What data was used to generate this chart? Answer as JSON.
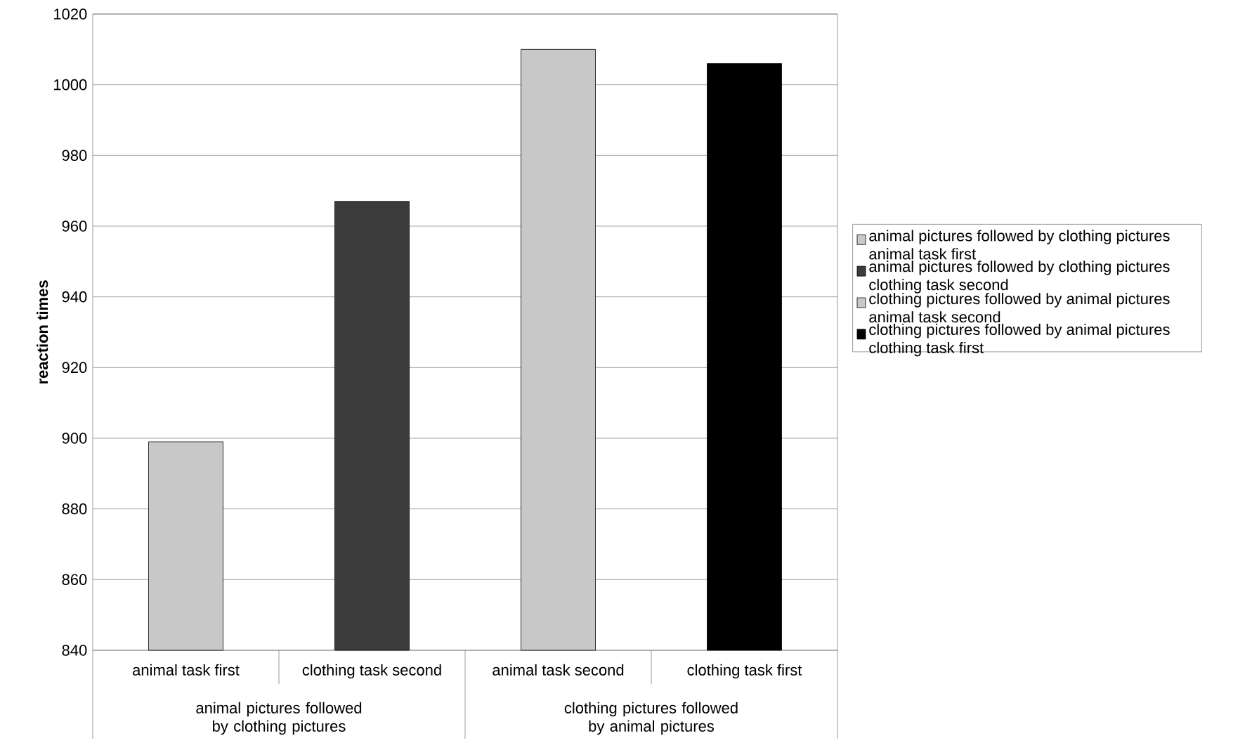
{
  "chart_data": {
    "type": "bar",
    "ylabel": "reaction times",
    "categories": [
      "animal task first",
      "clothing task second",
      "animal task second",
      "clothing task first"
    ],
    "series": [
      {
        "name": "animal pictures followed by clothing pictures animal task first",
        "color": "#c8c8c8",
        "values": [
          899,
          null,
          null,
          null
        ]
      },
      {
        "name": "animal pictures followed by clothing pictures clothing task second",
        "color": "#3c3c3c",
        "values": [
          null,
          967,
          null,
          null
        ]
      },
      {
        "name": "clothing pictures followed by animal pictures animal task second",
        "color": "#c8c8c8",
        "values": [
          null,
          null,
          1010,
          null
        ]
      },
      {
        "name": "clothing pictures followed by animal pictures clothing task first",
        "color": "#000000",
        "values": [
          null,
          null,
          null,
          1006
        ]
      }
    ],
    "annotations": [
      "animal pictures followed by clothing pictures",
      "clothing pictures followed by animal pictures"
    ],
    "ylim": [
      840,
      1020
    ],
    "yticks": [
      840,
      860,
      880,
      900,
      920,
      940,
      960,
      980,
      1000,
      1020
    ],
    "grid": "y",
    "legend": "right"
  }
}
